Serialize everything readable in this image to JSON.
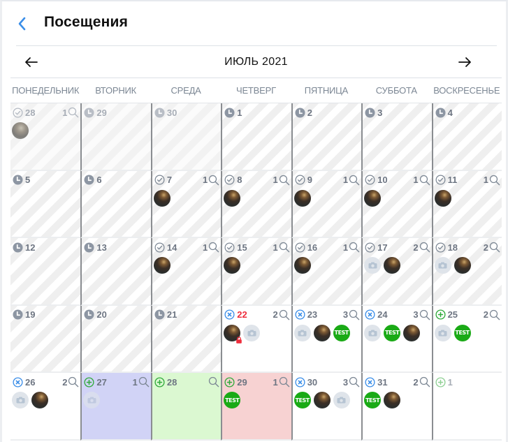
{
  "header": {
    "title": "Посещения",
    "back_icon": "chevron-left-icon"
  },
  "month_nav": {
    "prev_icon": "arrow-left-icon",
    "label": "ИЮЛЬ 2021",
    "next_icon": "arrow-right-icon"
  },
  "weekdays": [
    "ПОНЕДЕЛЬНИК",
    "ВТОРНИК",
    "СРЕДА",
    "ЧЕТВЕРГ",
    "ПЯТНИЦА",
    "СУББОТА",
    "ВОСКРЕСЕНЬЕ"
  ],
  "colors": {
    "accent_blue": "#3b8ee8",
    "status_green": "#2faa3a",
    "red_day": "#ee2d3c",
    "test_badge": "#1aaa16",
    "bg_purple": "#d1d3f6",
    "bg_green": "#dbf8d1",
    "bg_pink": "#f7d2d2"
  },
  "weeks": [
    [
      {
        "day": "28",
        "status": "check",
        "count": "1",
        "search": true,
        "bg": "striped-dim",
        "faded": true,
        "avatars": [
          "photo-faded"
        ]
      },
      {
        "day": "29",
        "status": "clock",
        "count": "",
        "search": false,
        "bg": "striped-dim",
        "faded": true,
        "avatars": []
      },
      {
        "day": "30",
        "status": "clock",
        "count": "",
        "search": false,
        "bg": "striped-dim",
        "faded": true,
        "avatars": []
      },
      {
        "day": "1",
        "status": "clock",
        "count": "",
        "search": false,
        "bg": "striped",
        "avatars": []
      },
      {
        "day": "2",
        "status": "clock",
        "count": "",
        "search": false,
        "bg": "striped",
        "avatars": []
      },
      {
        "day": "3",
        "status": "clock",
        "count": "",
        "search": false,
        "bg": "striped",
        "avatars": []
      },
      {
        "day": "4",
        "status": "clock",
        "count": "",
        "search": false,
        "bg": "striped",
        "avatars": []
      }
    ],
    [
      {
        "day": "5",
        "status": "clock",
        "count": "",
        "search": false,
        "bg": "striped",
        "avatars": []
      },
      {
        "day": "6",
        "status": "clock",
        "count": "",
        "search": false,
        "bg": "striped",
        "avatars": []
      },
      {
        "day": "7",
        "status": "check",
        "count": "1",
        "search": true,
        "bg": "striped",
        "avatars": [
          "photo"
        ]
      },
      {
        "day": "8",
        "status": "check",
        "count": "1",
        "search": true,
        "bg": "striped",
        "avatars": [
          "photo"
        ]
      },
      {
        "day": "9",
        "status": "check",
        "count": "1",
        "search": true,
        "bg": "striped",
        "avatars": [
          "photo"
        ]
      },
      {
        "day": "10",
        "status": "check",
        "count": "1",
        "search": true,
        "bg": "striped",
        "avatars": [
          "photo"
        ]
      },
      {
        "day": "11",
        "status": "check",
        "count": "1",
        "search": true,
        "bg": "striped",
        "avatars": [
          "photo"
        ]
      }
    ],
    [
      {
        "day": "12",
        "status": "clock",
        "count": "",
        "search": false,
        "bg": "striped",
        "avatars": []
      },
      {
        "day": "13",
        "status": "clock",
        "count": "",
        "search": false,
        "bg": "striped",
        "avatars": []
      },
      {
        "day": "14",
        "status": "check",
        "count": "1",
        "search": true,
        "bg": "striped",
        "avatars": [
          "photo"
        ]
      },
      {
        "day": "15",
        "status": "check",
        "count": "1",
        "search": true,
        "bg": "striped",
        "avatars": [
          "photo"
        ]
      },
      {
        "day": "16",
        "status": "check",
        "count": "1",
        "search": true,
        "bg": "striped",
        "avatars": [
          "photo"
        ]
      },
      {
        "day": "17",
        "status": "check",
        "count": "2",
        "search": true,
        "bg": "striped",
        "avatars": [
          "camera",
          "photo"
        ]
      },
      {
        "day": "18",
        "status": "check",
        "count": "2",
        "search": true,
        "bg": "striped",
        "avatars": [
          "camera",
          "photo"
        ]
      }
    ],
    [
      {
        "day": "19",
        "status": "clock",
        "count": "",
        "search": false,
        "bg": "striped",
        "avatars": []
      },
      {
        "day": "20",
        "status": "clock",
        "count": "",
        "search": false,
        "bg": "striped",
        "avatars": []
      },
      {
        "day": "21",
        "status": "clock",
        "count": "",
        "search": false,
        "bg": "striped",
        "avatars": []
      },
      {
        "day": "22",
        "status": "cancel",
        "count": "2",
        "search": true,
        "bg": "white",
        "red": true,
        "avatars": [
          "photo-locked",
          "camera"
        ]
      },
      {
        "day": "23",
        "status": "cancel",
        "count": "3",
        "search": true,
        "bg": "white",
        "avatars": [
          "camera",
          "photo",
          "test"
        ]
      },
      {
        "day": "24",
        "status": "cancel",
        "count": "3",
        "search": true,
        "bg": "white",
        "avatars": [
          "camera",
          "test",
          "photo"
        ]
      },
      {
        "day": "25",
        "status": "add",
        "count": "2",
        "search": true,
        "bg": "white",
        "avatars": [
          "camera",
          "test"
        ]
      }
    ],
    [
      {
        "day": "26",
        "status": "cancel",
        "count": "2",
        "search": true,
        "bg": "white",
        "avatars": [
          "camera",
          "photo"
        ]
      },
      {
        "day": "27",
        "status": "add",
        "count": "1",
        "search": true,
        "bg": "purple",
        "avatars": [
          "camera-faded"
        ]
      },
      {
        "day": "28",
        "status": "add",
        "count": "",
        "search": true,
        "bg": "green",
        "avatars": []
      },
      {
        "day": "29",
        "status": "add",
        "count": "1",
        "search": true,
        "bg": "pink",
        "avatars": [
          "test"
        ]
      },
      {
        "day": "30",
        "status": "cancel",
        "count": "3",
        "search": true,
        "bg": "white",
        "avatars": [
          "test",
          "photo",
          "camera"
        ]
      },
      {
        "day": "31",
        "status": "cancel",
        "count": "2",
        "search": true,
        "bg": "white",
        "avatars": [
          "test",
          "photo"
        ]
      },
      {
        "day": "1",
        "status": "add",
        "count": "",
        "search": false,
        "bg": "white",
        "faded": true,
        "avatars": []
      }
    ]
  ],
  "badge_text": "TEST"
}
